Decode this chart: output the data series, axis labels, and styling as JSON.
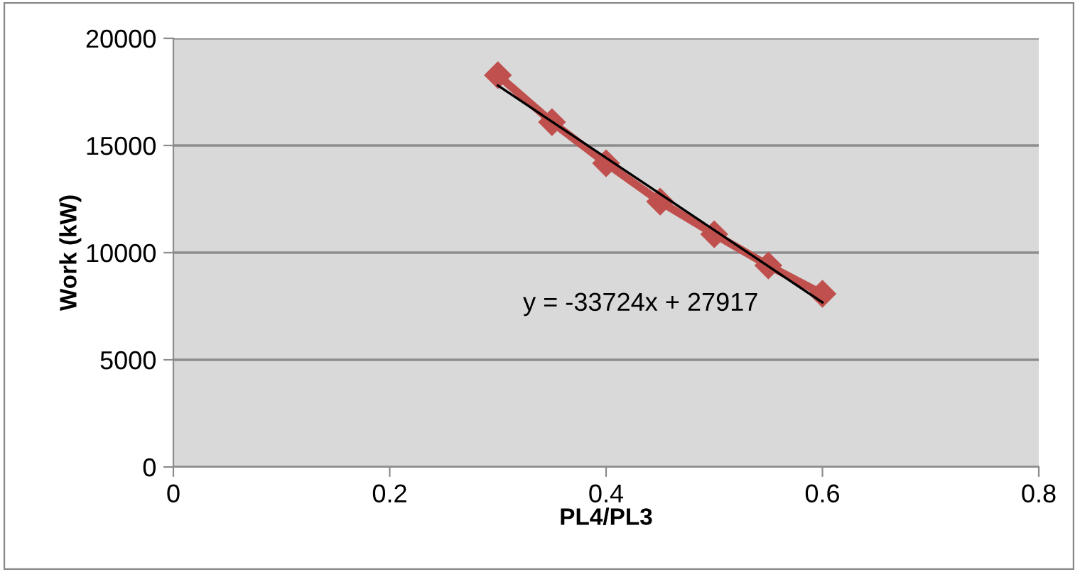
{
  "chart_data": {
    "type": "line",
    "xlabel": "PL4/PL3",
    "ylabel": "Work (kW)",
    "x": [
      0.3,
      0.35,
      0.4,
      0.45,
      0.5,
      0.55,
      0.6
    ],
    "series": [
      {
        "color": "#c0504d",
        "values": [
          18280,
          16090,
          14170,
          12380,
          10860,
          9400,
          8080
        ],
        "marker": "diamond"
      },
      {
        "type": "line",
        "color": "#000000",
        "x": [
          0.3,
          0.6
        ],
        "values": [
          17800,
          7680
        ],
        "marker": "none"
      }
    ],
    "annotations": [
      "y = -33724x + 27917"
    ],
    "xlim": [
      0,
      0.8
    ],
    "xticks": [
      0,
      0.2,
      0.4,
      0.6,
      0.8
    ],
    "ylim": [
      0,
      20000
    ],
    "yticks": [
      0,
      5000,
      10000,
      15000,
      20000
    ],
    "grid": "y",
    "legend": false
  }
}
